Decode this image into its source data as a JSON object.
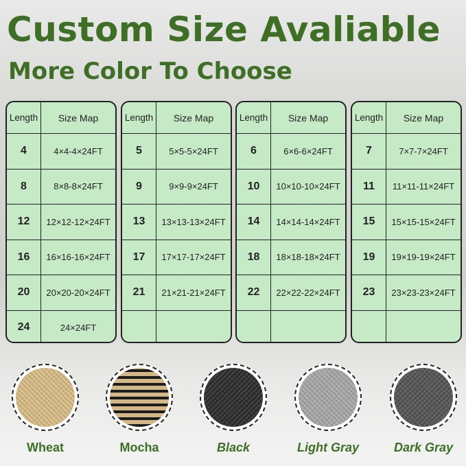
{
  "title": "Custom Size Avaliable",
  "subtitle": "More Color To Choose",
  "table_headers": {
    "length": "Length",
    "size_map": "Size Map"
  },
  "tables": [
    {
      "rows": [
        [
          "4",
          "4×4-4×24FT"
        ],
        [
          "8",
          "8×8-8×24FT"
        ],
        [
          "12",
          "12×12-12×24FT"
        ],
        [
          "16",
          "16×16-16×24FT"
        ],
        [
          "20",
          "20×20-20×24FT"
        ],
        [
          "24",
          "24×24FT"
        ]
      ]
    },
    {
      "rows": [
        [
          "5",
          "5×5-5×24FT"
        ],
        [
          "9",
          "9×9-9×24FT"
        ],
        [
          "13",
          "13×13-13×24FT"
        ],
        [
          "17",
          "17×17-17×24FT"
        ],
        [
          "21",
          "21×21-21×24FT"
        ],
        [
          "",
          ""
        ]
      ]
    },
    {
      "rows": [
        [
          "6",
          "6×6-6×24FT"
        ],
        [
          "10",
          "10×10-10×24FT"
        ],
        [
          "14",
          "14×14-14×24FT"
        ],
        [
          "18",
          "18×18-18×24FT"
        ],
        [
          "22",
          "22×22-22×24FT"
        ],
        [
          "",
          ""
        ]
      ]
    },
    {
      "rows": [
        [
          "7",
          "7×7-7×24FT"
        ],
        [
          "11",
          "11×11-11×24FT"
        ],
        [
          "15",
          "15×15-15×24FT"
        ],
        [
          "19",
          "19×19-19×24FT"
        ],
        [
          "23",
          "23×23-23×24FT"
        ],
        [
          "",
          ""
        ]
      ]
    }
  ],
  "colors": [
    {
      "name": "Wheat",
      "swatch": "#d9bd86",
      "italic": false
    },
    {
      "name": "Mocha",
      "swatch": "#8a7555",
      "italic": false
    },
    {
      "name": "Black",
      "swatch": "#2e2e2e",
      "italic": true
    },
    {
      "name": "Light Gray",
      "swatch": "#a8a8a8",
      "italic": true
    },
    {
      "name": "Dark Gray",
      "swatch": "#555555",
      "italic": true
    }
  ],
  "accent": "#3f6e26"
}
